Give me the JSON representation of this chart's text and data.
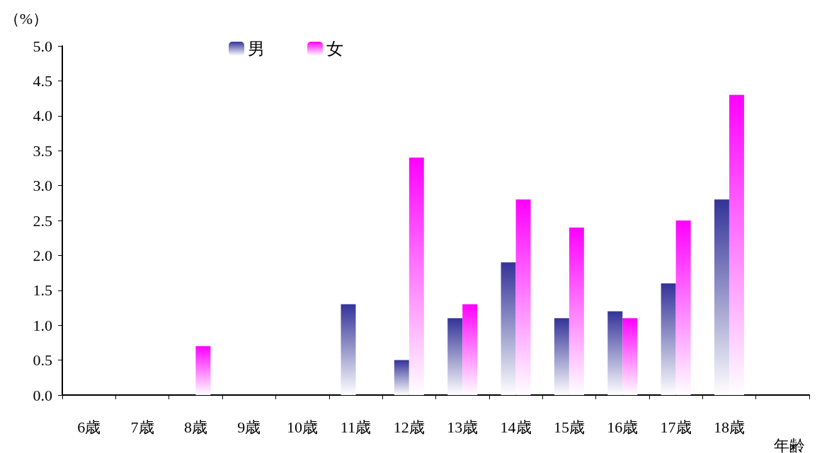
{
  "chart_data": {
    "type": "bar",
    "categories": [
      "6歳",
      "7歳",
      "8歳",
      "9歳",
      "10歳",
      "11歳",
      "12歳",
      "13歳",
      "14歳",
      "15歳",
      "16歳",
      "17歳",
      "18歳",
      null
    ],
    "series": [
      {
        "name": "男",
        "color": "#333399",
        "values": [
          0,
          0,
          0,
          0,
          0,
          1.3,
          0.5,
          1.1,
          1.9,
          1.1,
          1.2,
          1.6,
          2.8,
          null
        ]
      },
      {
        "name": "女",
        "color": "#ff00ff",
        "values": [
          0,
          0,
          0.7,
          0,
          0,
          0,
          3.4,
          1.3,
          2.8,
          2.4,
          1.1,
          2.5,
          4.3,
          null
        ]
      }
    ],
    "xlabel": "年齢",
    "ylabel": "（%）",
    "ylim": [
      0,
      5
    ],
    "yticks": [
      {
        "value": 0,
        "label": "0.0"
      },
      0.5,
      {
        "value": 1,
        "label": "1.0"
      },
      1.5,
      {
        "value": 2,
        "label": "2.0"
      },
      2.5,
      {
        "value": 3,
        "label": "3.0"
      },
      3.5,
      {
        "value": 4,
        "label": "4.0"
      },
      4.5,
      {
        "value": 5,
        "label": "5.0"
      }
    ],
    "grid": false,
    "legend": "top"
  }
}
